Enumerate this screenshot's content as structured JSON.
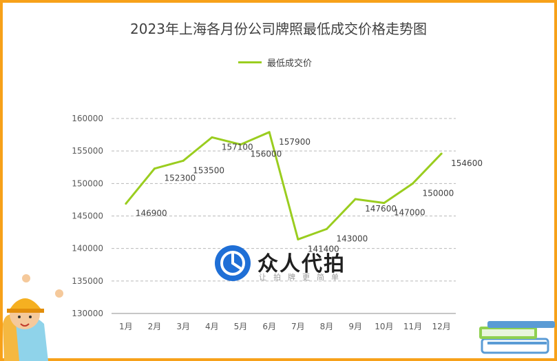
{
  "chart_data": {
    "type": "line",
    "title": "2023年上海各月份公司牌照最低成交价格走势图",
    "categories": [
      "1月",
      "2月",
      "3月",
      "4月",
      "5月",
      "6月",
      "7月",
      "8月",
      "9月",
      "10月",
      "11月",
      "12月"
    ],
    "series": [
      {
        "name": "最低成交价",
        "values": [
          146900,
          152300,
          153500,
          157100,
          156000,
          157900,
          141400,
          143000,
          147600,
          147000,
          150000,
          154600
        ]
      }
    ],
    "ylim": [
      130000,
      160000
    ],
    "yticks": [
      "130000",
      "135000",
      "140000",
      "145000",
      "150000",
      "155000",
      "160000"
    ],
    "grid": true,
    "legend": "top-center",
    "colors": {
      "line": "#9acd1f",
      "frame": "#f7a11a",
      "grid": "#b8b8b8"
    }
  },
  "watermark": {
    "name": "众人代拍",
    "tagline": "让拍牌更简单"
  }
}
